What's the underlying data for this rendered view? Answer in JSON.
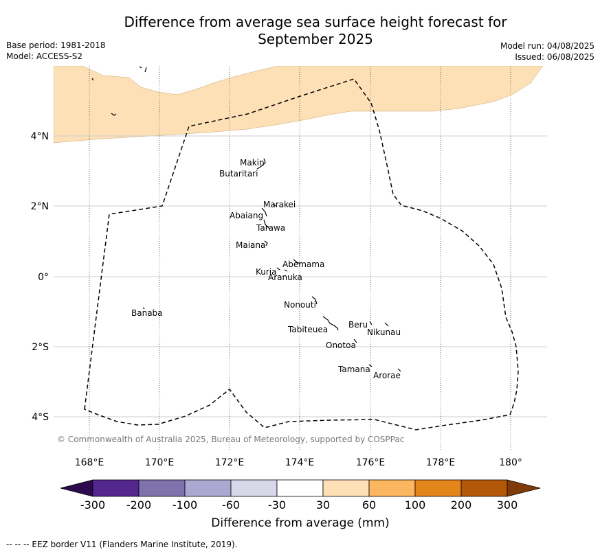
{
  "header": {
    "title_line1": "Difference from average sea surface height forecast for",
    "title_line2": "September 2025",
    "base_period": "Base period: 1981-2018",
    "model": "Model: ACCESS-S2",
    "model_run": "Model run: 04/08/2025",
    "issued": "Issued: 06/08/2025"
  },
  "map": {
    "region": "Kiribati (Gilbert Islands)",
    "lon_range": [
      167,
      181
    ],
    "lat_range": [
      -5,
      6
    ],
    "lon_ticks": [
      {
        "value": 168,
        "label": "168°E"
      },
      {
        "value": 170,
        "label": "170°E"
      },
      {
        "value": 172,
        "label": "172°E"
      },
      {
        "value": 174,
        "label": "174°E"
      },
      {
        "value": 176,
        "label": "176°E"
      },
      {
        "value": 178,
        "label": "178°E"
      },
      {
        "value": 180,
        "label": "180°"
      }
    ],
    "lat_ticks": [
      {
        "value": 4,
        "label": "4°N"
      },
      {
        "value": 2,
        "label": "2°N"
      },
      {
        "value": 0,
        "label": "0°"
      },
      {
        "value": -2,
        "label": "2°S"
      },
      {
        "value": -4,
        "label": "4°S"
      }
    ],
    "anomaly_fill_color": "#fde0b5",
    "anomaly_band": "30 to 60",
    "islands": [
      {
        "name": "Makin",
        "lon": 172.9,
        "lat": 3.2
      },
      {
        "name": "Butaritari",
        "lon": 172.8,
        "lat": 3.05
      },
      {
        "name": "Marakei",
        "lon": 173.3,
        "lat": 2.0
      },
      {
        "name": "Abaiang",
        "lon": 172.9,
        "lat": 1.8
      },
      {
        "name": "Tarawa",
        "lon": 173.0,
        "lat": 1.4
      },
      {
        "name": "Maiana",
        "lon": 173.0,
        "lat": 1.0
      },
      {
        "name": "Abemama",
        "lon": 173.85,
        "lat": 0.4
      },
      {
        "name": "Kuria",
        "lon": 173.4,
        "lat": 0.2
      },
      {
        "name": "Aranuka",
        "lon": 173.6,
        "lat": 0.17
      },
      {
        "name": "Banaba",
        "lon": 169.5,
        "lat": -0.85
      },
      {
        "name": "Nonouti",
        "lon": 174.4,
        "lat": -0.65
      },
      {
        "name": "Tabiteuea",
        "lon": 174.8,
        "lat": -1.3
      },
      {
        "name": "Beru",
        "lon": 176.0,
        "lat": -1.35
      },
      {
        "name": "Nikunau",
        "lon": 176.45,
        "lat": -1.35
      },
      {
        "name": "Onotoa",
        "lon": 175.55,
        "lat": -1.85
      },
      {
        "name": "Tamana",
        "lon": 176.0,
        "lat": -2.5
      },
      {
        "name": "Arorae",
        "lon": 176.8,
        "lat": -2.65
      }
    ],
    "credit": "© Commonwealth of Australia 2025, Bureau of Meteorology, supported by COSPPac"
  },
  "colorbar": {
    "title": "Difference from average (mm)",
    "tick_labels": [
      "-300",
      "-200",
      "-100",
      "-60",
      "-30",
      "30",
      "60",
      "100",
      "200",
      "300"
    ],
    "colors": {
      "extend_low": "#2d0a4e",
      "bins": [
        "#54278f",
        "#7f72ad",
        "#aca8d1",
        "#d9d8eb",
        "#ffffff",
        "#fde0b5",
        "#fdb660",
        "#e3851a",
        "#b35806"
      ],
      "extend_high": "#7f3b08"
    }
  },
  "footer": {
    "legend_text": "-- -- -- EEZ border V11 (Flanders Marine Institute, 2019)."
  }
}
